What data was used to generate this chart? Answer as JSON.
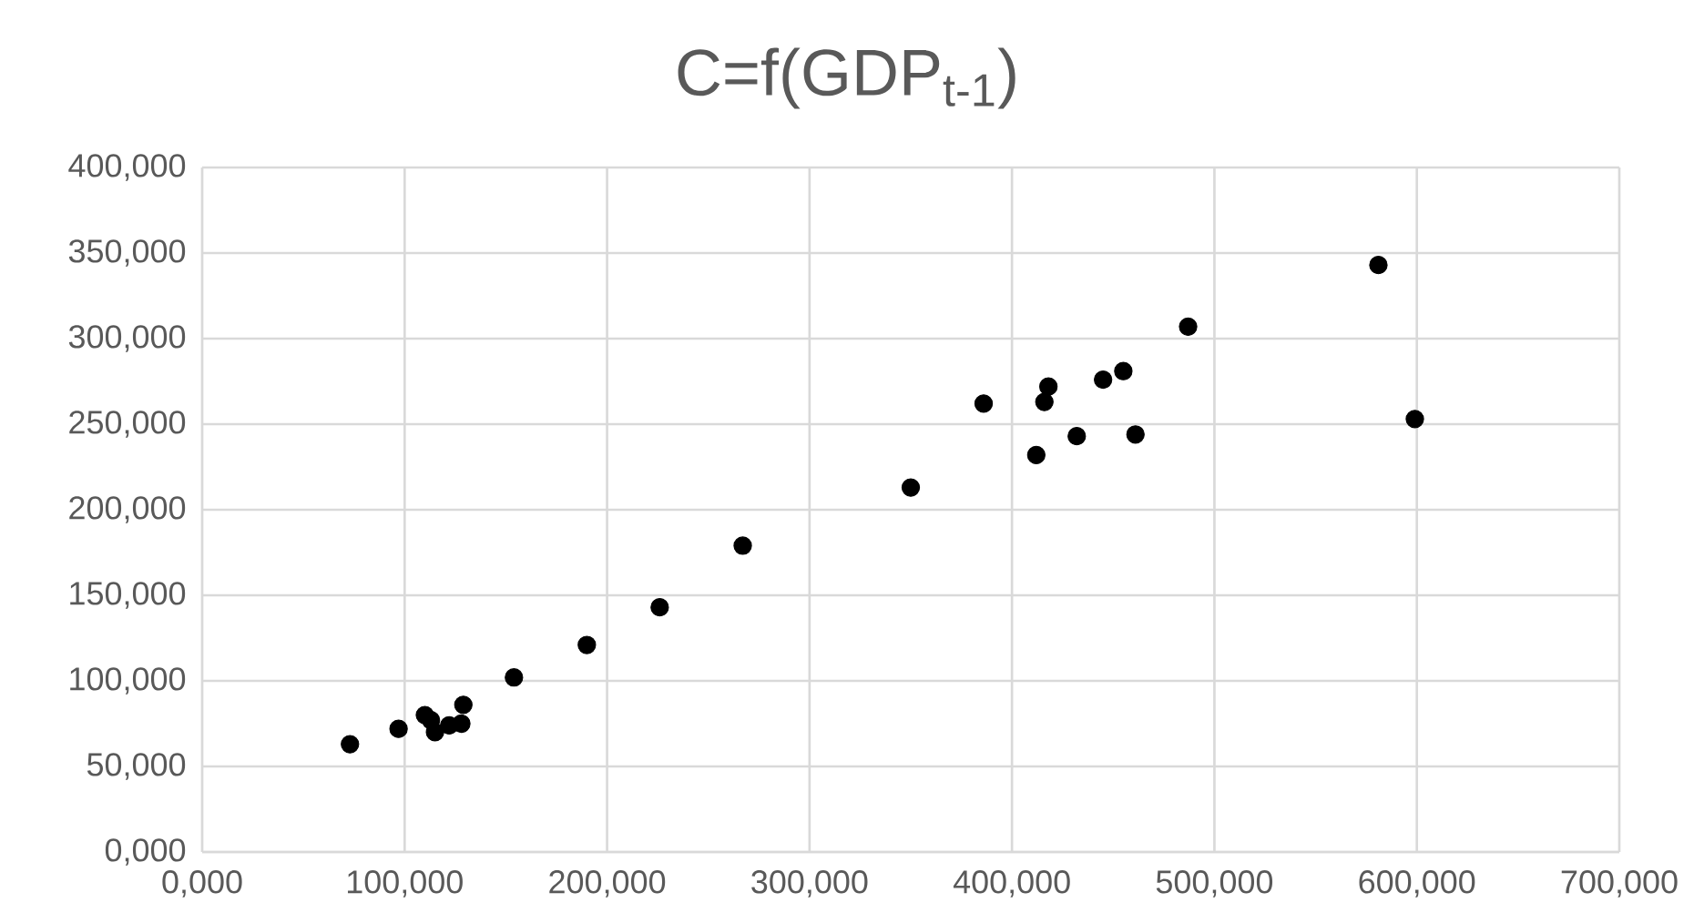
{
  "chart_data": {
    "type": "scatter",
    "title": "C=f(GDP$_{t-1}$)",
    "series": [
      {
        "color": "#000000",
        "x": [
          73,
          97,
          110,
          113,
          115,
          122,
          128,
          129,
          154,
          190,
          226,
          267,
          350,
          386,
          412,
          416,
          418,
          432,
          445,
          455,
          461,
          487,
          581,
          599
        ],
        "values": [
          63,
          72,
          80,
          77,
          70,
          74,
          75,
          86,
          102,
          121,
          143,
          179,
          213,
          262,
          232,
          263,
          272,
          243,
          276,
          281,
          244,
          307,
          343,
          253
        ]
      }
    ],
    "xlim": [
      0,
      700
    ],
    "ylim": [
      0,
      400
    ],
    "xticks": [
      {
        "value": 0,
        "label": "0,000"
      },
      {
        "value": 100,
        "label": "100,000"
      },
      {
        "value": 200,
        "label": "200,000"
      },
      {
        "value": 300,
        "label": "300,000"
      },
      {
        "value": 400,
        "label": "400,000"
      },
      {
        "value": 500,
        "label": "500,000"
      },
      {
        "value": 600,
        "label": "600,000"
      },
      {
        "value": 700,
        "label": "700,000"
      }
    ],
    "yticks": [
      {
        "value": 0,
        "label": "0,000"
      },
      {
        "value": 50,
        "label": "50,000"
      },
      {
        "value": 100,
        "label": "100,000"
      },
      {
        "value": 150,
        "label": "150,000"
      },
      {
        "value": 200,
        "label": "200,000"
      },
      {
        "value": 250,
        "label": "250,000"
      },
      {
        "value": 300,
        "label": "300,000"
      },
      {
        "value": 350,
        "label": "350,000"
      },
      {
        "value": 400,
        "label": "400,000"
      }
    ],
    "grid": true,
    "marker": "circle"
  }
}
